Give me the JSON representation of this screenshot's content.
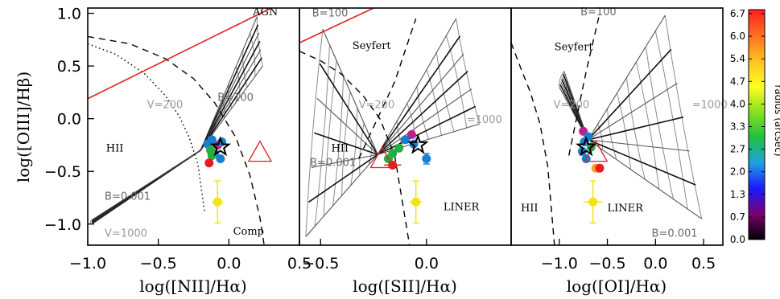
{
  "chart_data": {
    "type": "scatter",
    "y_axis": {
      "label": "log([OIII]/Hβ)",
      "range": [
        -1.2,
        1.05
      ],
      "ticks": [
        1.0,
        0.5,
        0.0,
        -0.5,
        -1.0
      ],
      "tick_labels": [
        "1.0",
        "0.5",
        "0.0",
        "−0.5",
        "−1.0"
      ]
    },
    "colorbar": {
      "label": "radius (arcsec)",
      "range": [
        0.0,
        6.7
      ],
      "tick_labels": [
        "6.7",
        "6.0",
        "5.4",
        "4.7",
        "4.0",
        "3.3",
        "2.7",
        "2.0",
        "1.3",
        "0.7",
        "0.0"
      ],
      "colors": [
        "#000000",
        "#7a0070",
        "#1a1aff",
        "#1fa0e0",
        "#20c040",
        "#8ae020",
        "#ffff20",
        "#ffc020",
        "#ff7020",
        "#ff2020"
      ]
    },
    "panels": [
      {
        "id": "nii",
        "x_axis": {
          "label": "log([NII]/Hα)",
          "range": [
            -1.0,
            0.5
          ],
          "ticks": [
            -1.0,
            -0.5,
            0.0,
            0.5
          ],
          "tick_labels": [
            "−1.0",
            "−0.5",
            "0.0",
            "0.5"
          ]
        },
        "region_labels": [
          {
            "text": "AGN",
            "x": 0.17,
            "y": 0.98,
            "style": "dark"
          },
          {
            "text": "HII",
            "x": -0.87,
            "y": -0.31,
            "style": "dark"
          },
          {
            "text": "Comp",
            "x": 0.03,
            "y": -1.1,
            "style": "dark"
          },
          {
            "text": "B=100",
            "x": -0.08,
            "y": 0.17,
            "style": "mid"
          },
          {
            "text": "V=200",
            "x": -0.58,
            "y": 0.1,
            "style": "grey"
          },
          {
            "text": "B=0.001",
            "x": -0.88,
            "y": -0.77,
            "style": "mid"
          },
          {
            "text": "V=1000",
            "x": -0.88,
            "y": -1.12,
            "style": "grey"
          }
        ],
        "boundary_curves": [
          {
            "name": "Kauffmann 2003",
            "style": "dotted",
            "x": [
              -1.0,
              -0.8,
              -0.6,
              -0.45,
              -0.35,
              -0.28,
              -0.22,
              -0.17
            ],
            "y": [
              0.71,
              0.61,
              0.43,
              0.22,
              0.02,
              -0.18,
              -0.43,
              -0.9
            ]
          },
          {
            "name": "Kewley 2001",
            "style": "dashed",
            "x": [
              -1.0,
              -0.7,
              -0.45,
              -0.25,
              -0.1,
              0.05,
              0.15,
              0.22,
              0.25
            ],
            "y": [
              0.78,
              0.71,
              0.57,
              0.38,
              0.15,
              -0.18,
              -0.54,
              -0.94,
              -1.2
            ]
          },
          {
            "name": "Seyfert-LINER",
            "style": "solid-red",
            "x": [
              -1.0,
              0.3
            ],
            "y": [
              0.19,
              1.05
            ]
          }
        ],
        "grid_anchors": {
          "corner_low": [
            -0.97,
            -1.0
          ],
          "corner_left_top": [
            -0.97,
            -0.96
          ],
          "corner_turn": [
            -0.2,
            -0.3
          ],
          "corner_high": [
            0.2,
            0.97
          ],
          "corner_right_turn": [
            0.24,
            0.5
          ]
        },
        "points": [
          {
            "x": -0.08,
            "y": -0.25,
            "r": 4.0,
            "color": "#c0208a"
          },
          {
            "x": -0.05,
            "y": -0.22,
            "r": 3.6,
            "color": "#1a7fd0"
          },
          {
            "x": -0.12,
            "y": -0.2,
            "r": 3.4,
            "color": "#1a7fd0"
          },
          {
            "x": -0.15,
            "y": -0.24,
            "r": 3.1,
            "color": "#1a7fd0"
          },
          {
            "x": -0.1,
            "y": -0.33,
            "r": 3.3,
            "color": "#1aa0c0"
          },
          {
            "x": -0.12,
            "y": -0.35,
            "r": 2.4,
            "color": "#22b040"
          },
          {
            "x": -0.13,
            "y": -0.3,
            "r": 2.0,
            "color": "#22b040"
          },
          {
            "x": -0.14,
            "y": -0.42,
            "r": 5.4,
            "color": "#e81c1c"
          },
          {
            "x": -0.06,
            "y": -0.38,
            "r": 3.9,
            "color": "#1a7fd0"
          },
          {
            "x": -0.08,
            "y": -0.79,
            "r": 5.0,
            "color": "#f2e411",
            "xerr": 0.04,
            "yerr": 0.2
          }
        ],
        "star": {
          "x": -0.06,
          "y": -0.27
        },
        "triangle": {
          "x": 0.22,
          "y": -0.32
        }
      },
      {
        "id": "sii",
        "x_axis": {
          "label": "log([SII]/Hα)",
          "range": [
            -0.6,
            0.4
          ],
          "ticks": [
            -0.5,
            0.0
          ],
          "tick_labels": [
            "−0.5",
            "0.0"
          ]
        },
        "region_labels": [
          {
            "text": "B=100",
            "x": -0.54,
            "y": 0.97,
            "style": "mid"
          },
          {
            "text": "Seyfert",
            "x": -0.35,
            "y": 0.66,
            "style": "dark"
          },
          {
            "text": "HII",
            "x": -0.45,
            "y": -0.31,
            "style": "dark"
          },
          {
            "text": "V=200",
            "x": -0.32,
            "y": 0.1,
            "style": "grey"
          },
          {
            "text": "B=0.001",
            "x": -0.55,
            "y": -0.45,
            "style": "mid"
          },
          {
            "text": "=1000",
            "x": 0.19,
            "y": -0.04,
            "style": "grey"
          },
          {
            "text": "LINER",
            "x": 0.08,
            "y": -0.87,
            "style": "dark"
          }
        ],
        "boundary_curves": [
          {
            "name": "Kewley 2001",
            "style": "dashed",
            "x": [
              -0.6,
              -0.5,
              -0.4,
              -0.3,
              -0.22,
              -0.15,
              -0.08
            ],
            "y": [
              0.64,
              0.55,
              0.42,
              0.22,
              0.0,
              -0.35,
              -1.2
            ]
          },
          {
            "name": "Seyfert-LINER",
            "style": "dashed",
            "x": [
              -0.32,
              -0.15,
              -0.05
            ],
            "y": [
              -0.38,
              0.35,
              0.95
            ]
          },
          {
            "name": "Seyfert-LINER-red",
            "style": "solid-red",
            "x": [
              -0.6,
              -0.25
            ],
            "y": [
              0.72,
              1.05
            ]
          }
        ],
        "grid_anchors": {
          "corner_low": [
            -0.57,
            -1.12
          ],
          "corner_left_top": [
            -0.49,
            0.85
          ],
          "corner_turn": [
            -0.23,
            -0.34
          ],
          "corner_high": [
            0.14,
            0.95
          ],
          "corner_right_turn": [
            0.25,
            -0.05
          ]
        },
        "points": [
          {
            "x": -0.07,
            "y": -0.15,
            "r": 4.0,
            "color": "#c0208a"
          },
          {
            "x": -0.1,
            "y": -0.2,
            "r": 3.6,
            "color": "#1a7fd0"
          },
          {
            "x": -0.06,
            "y": -0.24,
            "r": 3.4,
            "color": "#1a7fd0"
          },
          {
            "x": -0.13,
            "y": -0.28,
            "r": 3.1,
            "color": "#22b040"
          },
          {
            "x": -0.16,
            "y": -0.33,
            "r": 3.0,
            "color": "#22b040"
          },
          {
            "x": -0.18,
            "y": -0.38,
            "r": 2.4,
            "color": "#22b040"
          },
          {
            "x": -0.16,
            "y": -0.44,
            "r": 5.4,
            "color": "#e81c1c",
            "xerr": 0.04
          },
          {
            "x": 0.0,
            "y": -0.38,
            "r": 3.9,
            "color": "#1a7fd0",
            "xerr": 0.02,
            "yerr": 0.05
          },
          {
            "x": -0.05,
            "y": -0.79,
            "r": 5.0,
            "color": "#f2e411",
            "xerr": 0.03,
            "yerr": 0.2
          }
        ],
        "star": {
          "x": -0.04,
          "y": -0.25
        },
        "triangle": {
          "x": -0.21,
          "y": -0.38
        }
      },
      {
        "id": "oi",
        "x_axis": {
          "label": "log([OI]/Hα)",
          "range": [
            -1.5,
            0.7
          ],
          "ticks": [
            -1.0,
            -0.5,
            0.0,
            0.5
          ],
          "tick_labels": [
            "−1.0",
            "−0.5",
            "0.0",
            "0.5"
          ]
        },
        "region_labels": [
          {
            "text": "B=100",
            "x": -0.78,
            "y": 0.98,
            "style": "mid"
          },
          {
            "text": "Seyfert",
            "x": -1.05,
            "y": 0.65,
            "style": "dark"
          },
          {
            "text": "V=200",
            "x": -1.06,
            "y": 0.1,
            "style": "grey"
          },
          {
            "text": "=1000",
            "x": 0.38,
            "y": 0.1,
            "style": "grey"
          },
          {
            "text": "HII",
            "x": -1.4,
            "y": -0.88,
            "style": "dark"
          },
          {
            "text": "LINER",
            "x": -0.5,
            "y": -0.88,
            "style": "dark"
          },
          {
            "text": "B=0.001",
            "x": -0.04,
            "y": -1.12,
            "style": "mid"
          }
        ],
        "boundary_curves": [
          {
            "name": "Kewley 2001",
            "style": "dashed",
            "x": [
              -1.5,
              -1.4,
              -1.3,
              -1.2,
              -1.12,
              -1.05
            ],
            "y": [
              0.72,
              0.48,
              0.25,
              -0.05,
              -0.45,
              -1.2
            ]
          },
          {
            "name": "Seyfert-LINER",
            "style": "dashed",
            "x": [
              -0.9,
              -0.72,
              -0.58
            ],
            "y": [
              -0.35,
              0.45,
              1.0
            ]
          }
        ],
        "grid_anchors": {
          "corner_low": [
            -1.0,
            0.3
          ],
          "corner_left_top": [
            -0.95,
            0.45
          ],
          "corner_turn": [
            -0.7,
            -0.2
          ],
          "corner_high": [
            0.1,
            0.98
          ],
          "corner_right_turn": [
            0.48,
            -0.95
          ]
        },
        "points": [
          {
            "x": -0.75,
            "y": -0.12,
            "r": 4.0,
            "color": "#c0208a"
          },
          {
            "x": -0.7,
            "y": -0.17,
            "r": 3.6,
            "color": "#1a7fd0"
          },
          {
            "x": -0.74,
            "y": -0.22,
            "r": 3.4,
            "color": "#1a7fd0"
          },
          {
            "x": -0.67,
            "y": -0.27,
            "r": 3.1,
            "color": "#22b040"
          },
          {
            "x": -0.76,
            "y": -0.31,
            "r": 3.0,
            "color": "#1a7fd0"
          },
          {
            "x": -0.72,
            "y": -0.38,
            "r": 3.3,
            "color": "#1a7fd0"
          },
          {
            "x": -0.62,
            "y": -0.47,
            "r": 4.5,
            "color": "#f2a030"
          },
          {
            "x": -0.58,
            "y": -0.47,
            "r": 5.4,
            "color": "#e81c1c"
          },
          {
            "x": -0.65,
            "y": -0.79,
            "r": 5.0,
            "color": "#f2e411",
            "xerr": 0.1,
            "yerr": 0.2
          }
        ],
        "star": {
          "x": -0.72,
          "y": -0.27
        },
        "triangle": {
          "x": -0.62,
          "y": -0.32
        }
      }
    ]
  }
}
